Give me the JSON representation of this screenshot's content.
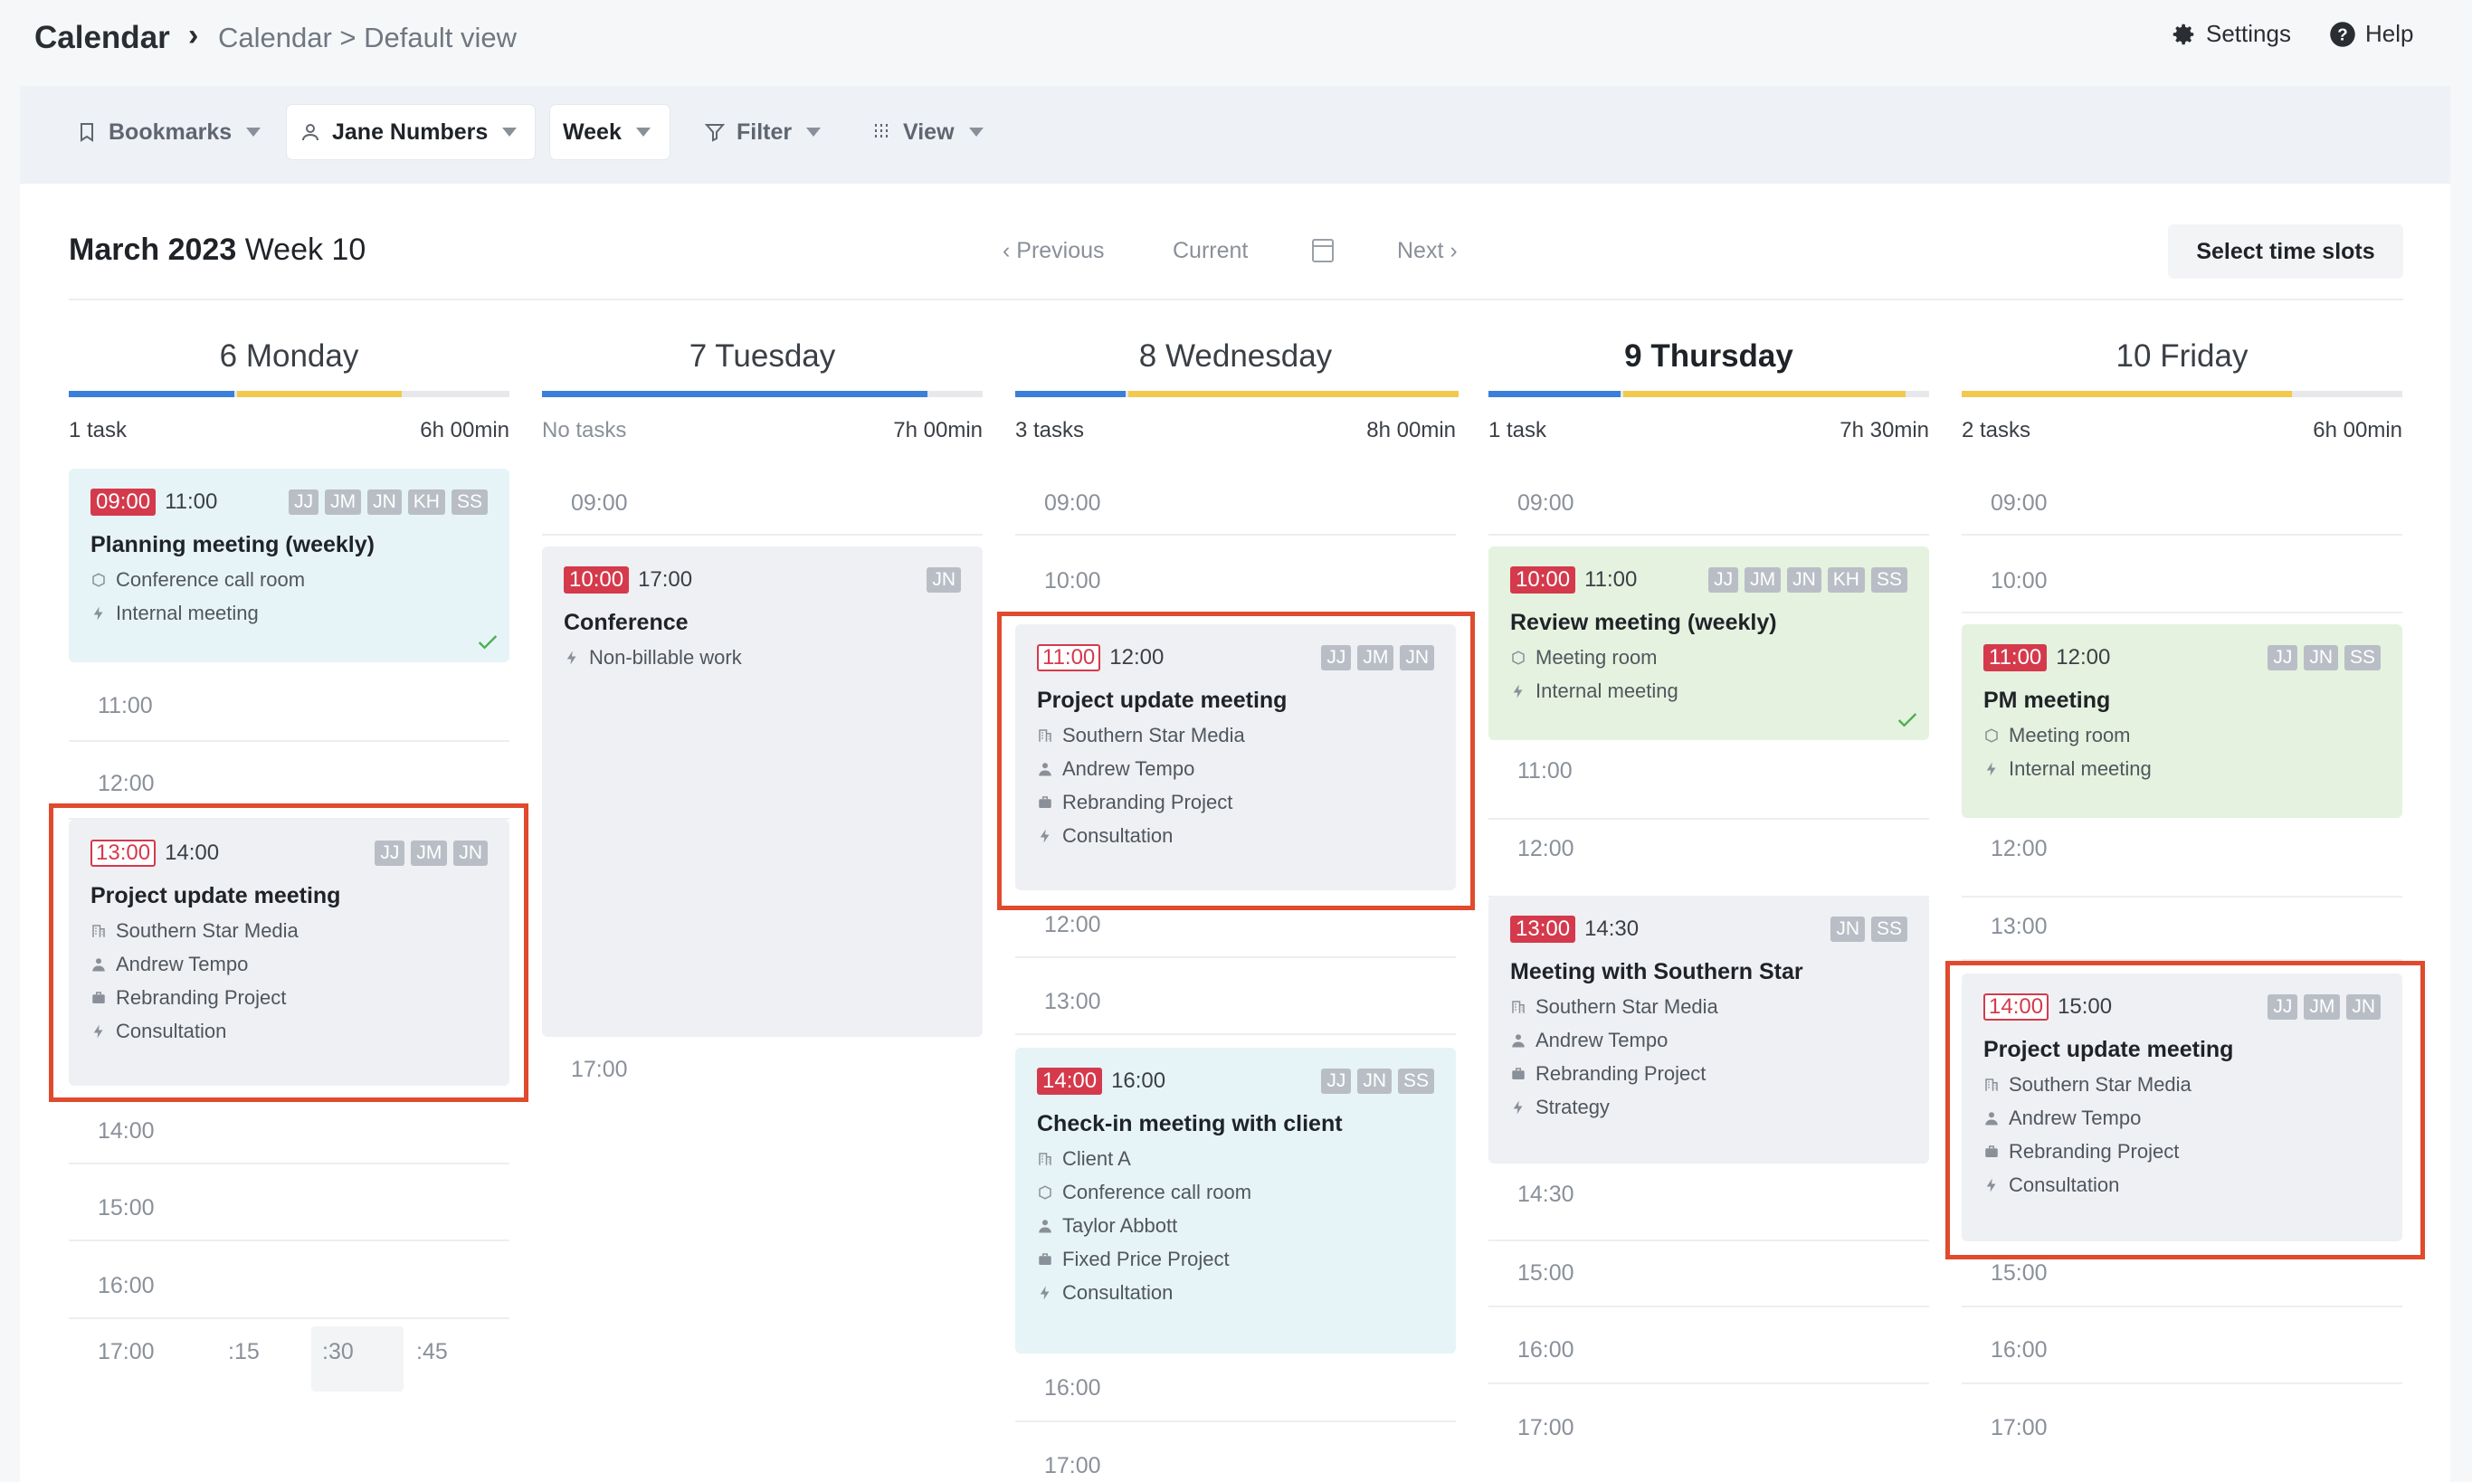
{
  "header": {
    "app_title": "Calendar",
    "breadcrumb_separator": "›",
    "breadcrumb": "Calendar > Default view",
    "settings_label": "Settings",
    "help_label": "Help"
  },
  "toolbar": {
    "bookmarks_label": "Bookmarks",
    "user_label": "Jane Numbers",
    "period_label": "Week",
    "filter_label": "Filter",
    "view_label": "View"
  },
  "calendar_header": {
    "month_year": "March 2023",
    "week_label": "Week 10",
    "previous_label": "Previous",
    "current_label": "Current",
    "next_label": "Next",
    "select_slots_label": "Select time slots"
  },
  "colors": {
    "accent_blue": "#3b7fd9",
    "accent_yellow": "#f2c94c",
    "start_red": "#d43a4c",
    "highlight_orange": "#e04a2d"
  },
  "days": [
    {
      "number": "6",
      "name": "Monday",
      "tasks": "1 task",
      "hours": "6h 00min",
      "progress_blue": 0.375,
      "progress_yellow": 0.375,
      "slots": [
        "11:00",
        "12:00",
        "14:00",
        "15:00",
        "16:00",
        "17:00"
      ],
      "minutes": [
        ":15",
        ":30",
        ":45"
      ],
      "events": [
        {
          "start": "09:00",
          "end": "11:00",
          "initials": [
            "JJ",
            "JM",
            "JN",
            "KH",
            "SS"
          ],
          "title": "Planning meeting (weekly)",
          "rows": [
            {
              "icon": "room-icon",
              "text": "Conference call room"
            },
            {
              "icon": "bolt-icon",
              "text": "Internal meeting"
            }
          ]
        },
        {
          "start": "13:00",
          "end": "14:00",
          "initials": [
            "JJ",
            "JM",
            "JN"
          ],
          "title": "Project update meeting",
          "rows": [
            {
              "icon": "building-icon",
              "text": "Southern Star Media"
            },
            {
              "icon": "person-icon",
              "text": "Andrew Tempo"
            },
            {
              "icon": "briefcase-icon",
              "text": "Rebranding Project"
            },
            {
              "icon": "bolt-icon",
              "text": "Consultation"
            }
          ]
        }
      ]
    },
    {
      "number": "7",
      "name": "Tuesday",
      "tasks": "No tasks",
      "hours": "7h 00min",
      "progress_blue": 0.875,
      "progress_yellow": 0,
      "slots": [
        "09:00",
        "17:00"
      ],
      "events": [
        {
          "start": "10:00",
          "end": "17:00",
          "initials": [
            "JN"
          ],
          "title": "Conference",
          "rows": [
            {
              "icon": "bolt-icon",
              "text": "Non-billable work"
            }
          ]
        }
      ]
    },
    {
      "number": "8",
      "name": "Wednesday",
      "tasks": "3 tasks",
      "hours": "8h 00min",
      "progress_blue": 0.25,
      "progress_yellow": 0.75,
      "slots": [
        "09:00",
        "10:00",
        "12:00",
        "13:00",
        "16:00",
        "17:00"
      ],
      "events": [
        {
          "start": "11:00",
          "end": "12:00",
          "initials": [
            "JJ",
            "JM",
            "JN"
          ],
          "title": "Project update meeting",
          "rows": [
            {
              "icon": "building-icon",
              "text": "Southern Star Media"
            },
            {
              "icon": "person-icon",
              "text": "Andrew Tempo"
            },
            {
              "icon": "briefcase-icon",
              "text": "Rebranding Project"
            },
            {
              "icon": "bolt-icon",
              "text": "Consultation"
            }
          ]
        },
        {
          "start": "14:00",
          "end": "16:00",
          "initials": [
            "JJ",
            "JN",
            "SS"
          ],
          "title": "Check-in meeting with client",
          "rows": [
            {
              "icon": "building-icon",
              "text": "Client A"
            },
            {
              "icon": "room-icon",
              "text": "Conference call room"
            },
            {
              "icon": "person-icon",
              "text": "Taylor Abbott"
            },
            {
              "icon": "briefcase-icon",
              "text": "Fixed Price Project"
            },
            {
              "icon": "bolt-icon",
              "text": "Consultation"
            }
          ]
        }
      ]
    },
    {
      "number": "9",
      "name": "Thursday",
      "tasks": "1 task",
      "hours": "7h 30min",
      "progress_blue": 0.3,
      "progress_yellow": 0.64,
      "slots": [
        "09:00",
        "11:00",
        "12:00",
        "14:30",
        "15:00",
        "16:00",
        "17:00"
      ],
      "events": [
        {
          "start": "10:00",
          "end": "11:00",
          "initials": [
            "JJ",
            "JM",
            "JN",
            "KH",
            "SS"
          ],
          "title": "Review meeting (weekly)",
          "rows": [
            {
              "icon": "room-icon",
              "text": "Meeting room"
            },
            {
              "icon": "bolt-icon",
              "text": "Internal meeting"
            }
          ]
        },
        {
          "start": "13:00",
          "end": "14:30",
          "initials": [
            "JN",
            "SS"
          ],
          "title": "Meeting with Southern Star",
          "rows": [
            {
              "icon": "building-icon",
              "text": "Southern Star Media"
            },
            {
              "icon": "person-icon",
              "text": "Andrew Tempo"
            },
            {
              "icon": "briefcase-icon",
              "text": "Rebranding Project"
            },
            {
              "icon": "bolt-icon",
              "text": "Strategy"
            }
          ]
        }
      ]
    },
    {
      "number": "10",
      "name": "Friday",
      "tasks": "2 tasks",
      "hours": "6h 00min",
      "progress_blue": 0,
      "progress_yellow": 0.75,
      "slots": [
        "09:00",
        "10:00",
        "12:00",
        "13:00",
        "15:00",
        "16:00",
        "17:00"
      ],
      "events": [
        {
          "start": "11:00",
          "end": "12:00",
          "initials": [
            "JJ",
            "JN",
            "SS"
          ],
          "title": "PM meeting",
          "rows": [
            {
              "icon": "room-icon",
              "text": "Meeting room"
            },
            {
              "icon": "bolt-icon",
              "text": "Internal meeting"
            }
          ]
        },
        {
          "start": "14:00",
          "end": "15:00",
          "initials": [
            "JJ",
            "JM",
            "JN"
          ],
          "title": "Project update meeting",
          "rows": [
            {
              "icon": "building-icon",
              "text": "Southern Star Media"
            },
            {
              "icon": "person-icon",
              "text": "Andrew Tempo"
            },
            {
              "icon": "briefcase-icon",
              "text": "Rebranding Project"
            },
            {
              "icon": "bolt-icon",
              "text": "Consultation"
            }
          ]
        }
      ]
    }
  ]
}
